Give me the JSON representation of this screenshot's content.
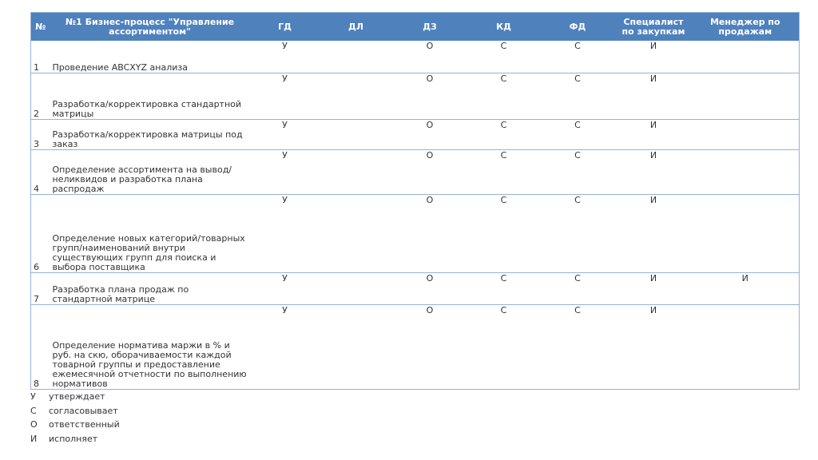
{
  "table": {
    "columns": [
      "№",
      "№1 Бизнес-процесс \"Управление ассортиментом\"",
      "ГД",
      "ДЛ",
      "ДЗ",
      "КД",
      "ФД",
      "Специалист по закупкам",
      "Менеджер по продажам"
    ],
    "rows": [
      {
        "number": "1",
        "process": "Проведение ABCXYZ анализа",
        "roles": [
          "У",
          null,
          "О",
          "С",
          "С",
          "И",
          null
        ]
      },
      {
        "number": "2",
        "process": "Разработка/корректировка стандартной матрицы",
        "roles": [
          "У",
          null,
          "О",
          "С",
          "С",
          "И",
          null
        ]
      },
      {
        "number": "3",
        "process": "Разработка/корректировка матрицы под заказ",
        "roles": [
          "У",
          null,
          "О",
          "С",
          "С",
          "И",
          null
        ]
      },
      {
        "number": "4",
        "process": "Определение ассортимента на вывод/неликвидов и разработка плана распродаж",
        "roles": [
          "У",
          null,
          "О",
          "С",
          "С",
          "И",
          null
        ]
      },
      {
        "number": "6",
        "process": "Определение новых категорий/товарных групп/наименований внутри существующих групп для поиска и выбора поставщика",
        "roles": [
          "У",
          null,
          "О",
          "С",
          "С",
          "И",
          null
        ]
      },
      {
        "number": "7",
        "process": "Разработка плана продаж по стандартной матрице",
        "roles": [
          "У",
          null,
          "О",
          "С",
          "С",
          "И",
          "И"
        ]
      },
      {
        "number": "8",
        "process": "Определение норматива маржи в % и руб. на скю, оборачиваемости каждой товарной группы и предоставление ежемесячной отчетности по выполнению нормативов",
        "roles": [
          "У",
          null,
          "О",
          "С",
          "С",
          "И",
          null
        ]
      }
    ]
  },
  "legend": [
    {
      "letter": "У",
      "text": "утверждает"
    },
    {
      "letter": "С",
      "text": "согласовывает"
    },
    {
      "letter": "О",
      "text": "ответственный"
    },
    {
      "letter": "И",
      "text": "исполняет"
    }
  ]
}
